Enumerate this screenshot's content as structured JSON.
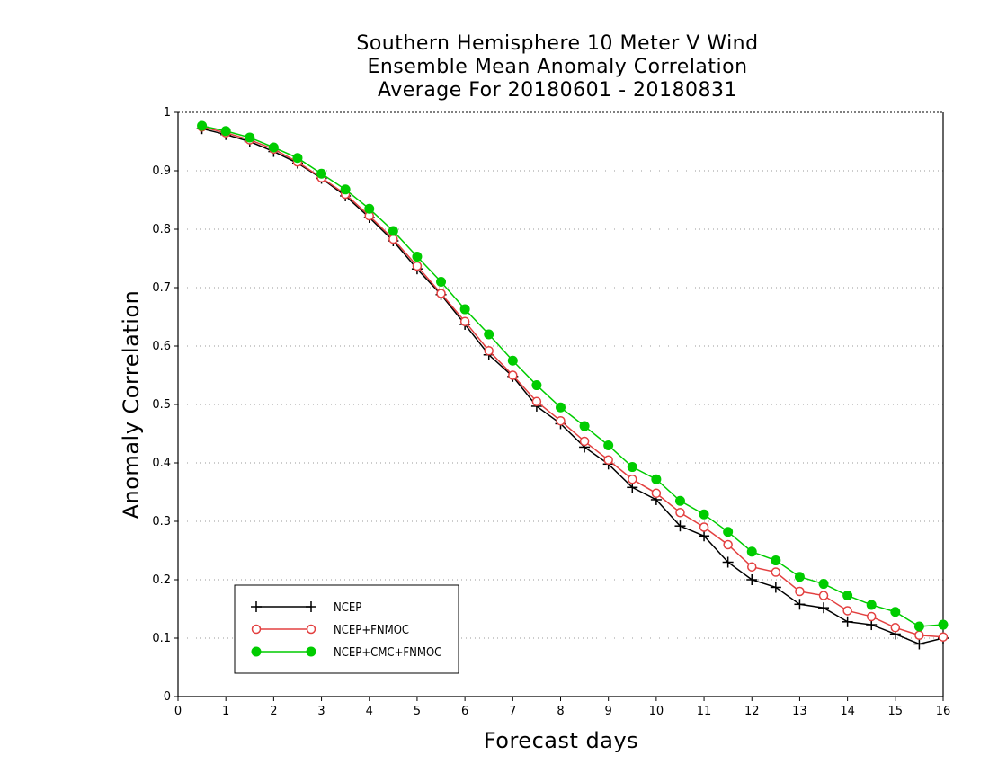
{
  "chart_data": {
    "type": "line",
    "title": [
      "Southern Hemisphere 10 Meter V Wind",
      "Ensemble Mean Anomaly Correlation",
      "Average For 20180601 - 20180831"
    ],
    "xlabel": "Forecast days",
    "ylabel": "Anomaly Correlation",
    "xlim": [
      0,
      16
    ],
    "ylim": [
      0,
      1
    ],
    "xticks": [
      0,
      1,
      2,
      3,
      4,
      5,
      6,
      7,
      8,
      9,
      10,
      11,
      12,
      13,
      14,
      15,
      16
    ],
    "yticks": [
      0,
      0.1,
      0.2,
      0.3,
      0.4,
      0.5,
      0.6,
      0.7,
      0.8,
      0.9,
      1
    ],
    "grid": "horizontal dotted",
    "legend_position": "bottom-left",
    "x": [
      0.5,
      1,
      1.5,
      2,
      2.5,
      3,
      3.5,
      4,
      4.5,
      5,
      5.5,
      6,
      6.5,
      7,
      7.5,
      8,
      8.5,
      9,
      9.5,
      10,
      10.5,
      11,
      11.5,
      12,
      12.5,
      13,
      13.5,
      14,
      14.5,
      15,
      15.5,
      16
    ],
    "series": [
      {
        "name": "NCEP",
        "color": "#000000",
        "marker": "plus",
        "values": [
          0.972,
          0.962,
          0.95,
          0.933,
          0.913,
          0.887,
          0.857,
          0.82,
          0.78,
          0.732,
          0.688,
          0.637,
          0.585,
          0.548,
          0.497,
          0.467,
          0.427,
          0.398,
          0.358,
          0.337,
          0.292,
          0.275,
          0.23,
          0.2,
          0.187,
          0.158,
          0.152,
          0.128,
          0.123,
          0.107,
          0.09,
          0.1
        ]
      },
      {
        "name": "NCEP+FNMOC",
        "color": "#e34040",
        "marker": "open-circle",
        "values": [
          0.975,
          0.965,
          0.953,
          0.937,
          0.915,
          0.888,
          0.86,
          0.823,
          0.783,
          0.737,
          0.69,
          0.642,
          0.592,
          0.55,
          0.505,
          0.472,
          0.437,
          0.405,
          0.372,
          0.348,
          0.315,
          0.29,
          0.26,
          0.222,
          0.213,
          0.18,
          0.173,
          0.147,
          0.137,
          0.118,
          0.105,
          0.102
        ]
      },
      {
        "name": "NCEP+CMC+FNMOC",
        "color": "#00cc00",
        "marker": "filled-circle",
        "values": [
          0.977,
          0.968,
          0.957,
          0.94,
          0.922,
          0.895,
          0.868,
          0.835,
          0.797,
          0.753,
          0.71,
          0.663,
          0.62,
          0.575,
          0.533,
          0.495,
          0.463,
          0.43,
          0.393,
          0.372,
          0.335,
          0.312,
          0.282,
          0.248,
          0.233,
          0.205,
          0.193,
          0.173,
          0.157,
          0.145,
          0.12,
          0.123
        ]
      }
    ]
  }
}
